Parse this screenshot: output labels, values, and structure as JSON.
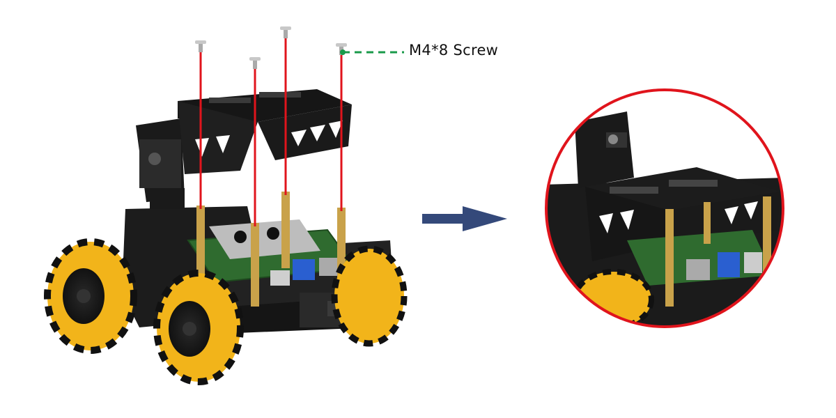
{
  "callout": {
    "label": "M4*8 Screw",
    "line_color": "#1a9a4a"
  },
  "colors": {
    "screw_rod": "#e0141c",
    "arrow": "#34497a",
    "zoom_ring": "#e0141c",
    "wheel": "#f2b41a",
    "chassis": "#1c1c1c",
    "pcb": "#2f6b2f",
    "standoff": "#c9a24a"
  },
  "icons": {
    "step_arrow": "right-arrow-icon",
    "callout_dot": "dot-icon"
  }
}
